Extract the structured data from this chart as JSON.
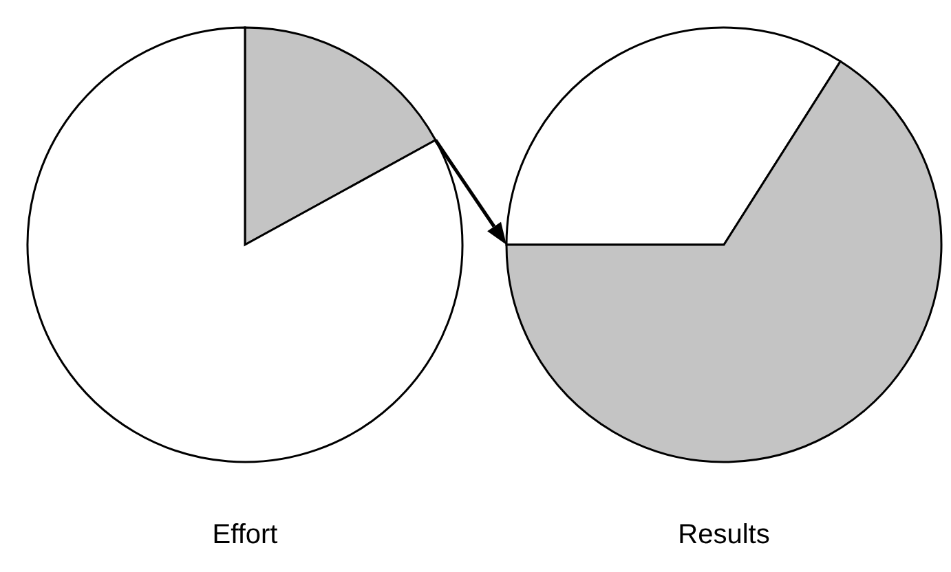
{
  "chart_data": [
    {
      "type": "pie",
      "xlabel": "Effort",
      "categories": [
        null,
        null
      ],
      "values": [
        17,
        83
      ],
      "colors": [
        "#c4c4c4",
        "#ffffff"
      ]
    },
    {
      "type": "pie",
      "xlabel": "Results",
      "categories": [
        null,
        null
      ],
      "values": [
        34,
        66
      ],
      "colors": [
        "#ffffff",
        "#c4c4c4"
      ]
    }
  ]
}
